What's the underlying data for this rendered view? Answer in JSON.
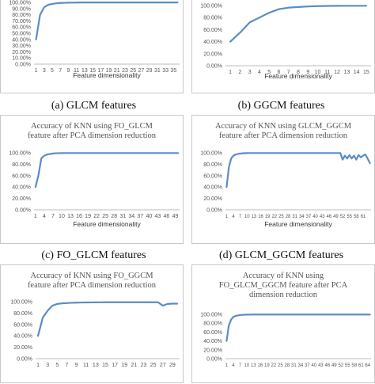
{
  "chart_data": [
    {
      "type": "line",
      "title": "",
      "xlabel": "Feature dimensionality",
      "ylabel": "",
      "x_ticks": [
        "1",
        "3",
        "5",
        "7",
        "9",
        "11",
        "13",
        "15",
        "17",
        "19",
        "21",
        "23",
        "25",
        "27",
        "29",
        "31",
        "33",
        "35"
      ],
      "x": [
        1,
        2,
        3,
        4,
        5,
        6,
        7,
        8,
        9,
        10,
        11,
        12,
        13,
        14,
        15,
        16,
        17,
        18,
        19,
        20,
        21,
        22,
        23,
        24,
        25,
        26,
        27,
        28,
        29,
        30,
        31,
        32,
        33,
        34,
        35,
        36
      ],
      "y_ticks": [
        "0.00%",
        "10.00%",
        "20.00%",
        "30.00%",
        "40.00%",
        "50.00%",
        "60.00%",
        "70.00%",
        "80.00%",
        "90.00%",
        "100.00%"
      ],
      "ylim": [
        0,
        100
      ],
      "grid": false,
      "color": "#5b8dc5",
      "series": [
        {
          "values": [
            40,
            80,
            92,
            96,
            97.5,
            98.5,
            99,
            99.3,
            99.5,
            99.6,
            99.7,
            99.8,
            99.8,
            99.8,
            99.8,
            99.8,
            99.8,
            99.8,
            99.8,
            99.8,
            99.8,
            99.8,
            99.8,
            99.8,
            99.8,
            99.8,
            99.8,
            99.8,
            99.8,
            99.8,
            99.8,
            99.8,
            99.8,
            99.8,
            99.8,
            99.8
          ]
        }
      ],
      "caption": "(a)  GLCM features"
    },
    {
      "type": "line",
      "title": "",
      "xlabel": "Feature dimensionality",
      "ylabel": "",
      "x_ticks": [
        "1",
        "2",
        "3",
        "4",
        "5",
        "6",
        "7",
        "8",
        "9",
        "10",
        "11",
        "12",
        "13",
        "14",
        "15"
      ],
      "x": [
        1,
        2,
        3,
        4,
        5,
        6,
        7,
        8,
        9,
        10,
        11,
        12,
        13,
        14,
        15
      ],
      "y_ticks": [
        "0.00%",
        "20.00%",
        "40.00%",
        "60.00%",
        "80.00%",
        "100.00%"
      ],
      "ylim": [
        0,
        100
      ],
      "grid": false,
      "color": "#5b8dc5",
      "series": [
        {
          "values": [
            40,
            55,
            72,
            80,
            88,
            94,
            96.5,
            97.5,
            98.5,
            99,
            99.3,
            99.5,
            99.6,
            99.6,
            99.6
          ]
        }
      ],
      "caption": "(b) GGCM features"
    },
    {
      "type": "line",
      "title": "Accuracy of KNN using FO_GLCM feature after PCA dimension reduction",
      "xlabel": "Feature dimensionality",
      "ylabel": "",
      "x_ticks": [
        "1",
        "4",
        "7",
        "10",
        "13",
        "16",
        "19",
        "22",
        "25",
        "28",
        "31",
        "34",
        "37",
        "40",
        "43",
        "46",
        "49"
      ],
      "x": [
        1,
        2,
        3,
        4,
        5,
        6,
        7,
        8,
        9,
        10,
        11,
        12,
        13,
        14,
        15,
        16,
        17,
        18,
        19,
        20,
        21,
        22,
        23,
        24,
        25,
        26,
        27,
        28,
        29,
        30,
        31,
        32,
        33,
        34,
        35,
        36,
        37,
        38,
        39,
        40,
        41,
        42,
        43,
        44,
        45,
        46,
        47,
        48,
        49,
        50
      ],
      "y_ticks": [
        "0.00%",
        "20.00%",
        "40.00%",
        "60.00%",
        "80.00%",
        "100.00%"
      ],
      "ylim": [
        0,
        100
      ],
      "grid": false,
      "color": "#5b8dc5",
      "series": [
        {
          "values": [
            40,
            60,
            90,
            95,
            97,
            98,
            98.8,
            99.2,
            99.4,
            99.5,
            99.6,
            99.6,
            99.6,
            99.6,
            99.6,
            99.6,
            99.6,
            99.6,
            99.6,
            99.6,
            99.6,
            99.6,
            99.6,
            99.6,
            99.6,
            99.6,
            99.6,
            99.6,
            99.6,
            99.6,
            99.6,
            99.6,
            99.6,
            99.6,
            99.6,
            99.6,
            99.6,
            99.6,
            99.6,
            99.6,
            99.6,
            99.6,
            99.6,
            99.6,
            99.6,
            99.6,
            99.6,
            99.6,
            99.6,
            99.6
          ]
        }
      ],
      "caption": "(c) FO_GLCM features"
    },
    {
      "type": "line",
      "title": "Accuracy of KNN using GLCM_GGCM feature after PCA dimension reduction",
      "xlabel": "Feature dimensionality",
      "ylabel": "",
      "x_ticks": [
        "1",
        "4",
        "7",
        "10",
        "13",
        "16",
        "19",
        "22",
        "25",
        "28",
        "31",
        "34",
        "37",
        "40",
        "43",
        "46",
        "49",
        "52",
        "55",
        "58",
        "61"
      ],
      "x_count": 64,
      "y_ticks": [
        "0.00%",
        "20.00%",
        "40.00%",
        "60.00%",
        "80.00%",
        "100.00%"
      ],
      "ylim": [
        0,
        100
      ],
      "grid": false,
      "color": "#5b8dc5",
      "series": [
        {
          "values": [
            40,
            75,
            90,
            95,
            97,
            98,
            98.7,
            99.1,
            99.3,
            99.5,
            99.6,
            99.6,
            99.6,
            99.6,
            99.6,
            99.6,
            99.6,
            99.6,
            99.6,
            99.6,
            99.6,
            99.6,
            99.6,
            99.6,
            99.6,
            99.6,
            99.6,
            99.6,
            99.6,
            99.6,
            99.6,
            99.6,
            99.6,
            99.6,
            99.6,
            99.6,
            99.6,
            99.6,
            99.6,
            99.6,
            99.6,
            99.6,
            99.6,
            99.6,
            99.6,
            99.6,
            99.6,
            99.6,
            99.6,
            99.6,
            99.6,
            88,
            95,
            90,
            96,
            90,
            95,
            88,
            96,
            92,
            95,
            97,
            90,
            82
          ]
        }
      ],
      "caption": "(d) GLCM_GGCM features"
    },
    {
      "type": "line",
      "title": "Accuracy of KNN using FO_GGCM feature after PCA dimension reduction",
      "xlabel": "",
      "ylabel": "",
      "x_ticks": [
        "1",
        "3",
        "5",
        "7",
        "9",
        "11",
        "13",
        "15",
        "17",
        "19",
        "21",
        "23",
        "25",
        "27",
        "29"
      ],
      "x": [
        1,
        2,
        3,
        4,
        5,
        6,
        7,
        8,
        9,
        10,
        11,
        12,
        13,
        14,
        15,
        16,
        17,
        18,
        19,
        20,
        21,
        22,
        23,
        24,
        25,
        26,
        27,
        28,
        29,
        30
      ],
      "y_ticks": [
        "0.00%",
        "20.00%",
        "40.00%",
        "60.00%",
        "80.00%",
        "100.00%"
      ],
      "ylim": [
        0,
        100
      ],
      "grid": false,
      "color": "#5b8dc5",
      "series": [
        {
          "values": [
            40,
            72,
            84,
            93,
            96,
            97,
            97.5,
            98,
            98.3,
            98.5,
            98.6,
            98.7,
            98.8,
            98.9,
            99,
            99,
            99,
            99,
            99,
            99,
            99,
            99,
            99,
            99,
            99,
            99,
            93,
            96,
            96.5,
            96.5
          ]
        }
      ],
      "caption": ""
    },
    {
      "type": "line",
      "title": "Accuracy of KNN using FO_GLCM_GGCM feature after PCA dimension reduction",
      "xlabel": "",
      "ylabel": "",
      "x_ticks": [
        "1",
        "4",
        "7",
        "10",
        "13",
        "16",
        "19",
        "22",
        "25",
        "28",
        "31",
        "34",
        "37",
        "40",
        "43",
        "46",
        "49",
        "52",
        "55",
        "58",
        "61",
        "64"
      ],
      "x_count": 65,
      "y_ticks": [
        "0.00%",
        "20.00%",
        "40.00%",
        "60.00%",
        "80.00%",
        "100.00%"
      ],
      "ylim": [
        0,
        100
      ],
      "grid": false,
      "color": "#5b8dc5",
      "series": [
        {
          "values": [
            40,
            75,
            88,
            94,
            96.5,
            97.5,
            98.3,
            98.8,
            99.1,
            99.3,
            99.4,
            99.5,
            99.5,
            99.5,
            99.5,
            99.5,
            99.5,
            99.5,
            99.5,
            99.5,
            99.5,
            99.5,
            99.5,
            99.5,
            99.5,
            99.5,
            99.5,
            99.5,
            99.5,
            99.5,
            99.5,
            99.5,
            99.5,
            99.5,
            99.5,
            99.5,
            99.5,
            99.5,
            99.5,
            99.5,
            99.5,
            99.5,
            99.5,
            99.5,
            99.5,
            99.5,
            99.5,
            99.5,
            99.5,
            99.5,
            99.5,
            99.5,
            99.5,
            99.5,
            99.5,
            99.5,
            99.5,
            99.5,
            99.5,
            99.5,
            99.5,
            99.5,
            99.5,
            99.5,
            99.5
          ]
        }
      ],
      "caption": ""
    }
  ]
}
